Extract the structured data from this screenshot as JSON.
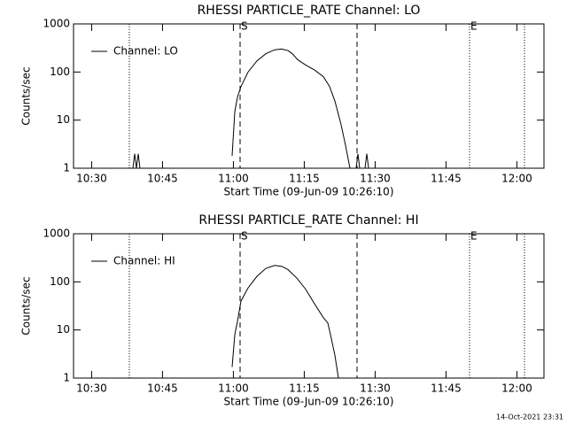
{
  "chart_data": [
    {
      "type": "line",
      "title": "RHESSI PARTICLE_RATE Channel: LO",
      "x_label": "Start Time (09-Jun-09 10:26:10)",
      "y_label": "Counts/sec",
      "xlim": [
        626.17,
        725.73
      ],
      "ylim": [
        1,
        1000
      ],
      "log_y": true,
      "xticks": [
        {
          "value": 630,
          "label": "10:30"
        },
        {
          "value": 645,
          "label": "10:45"
        },
        {
          "value": 660,
          "label": "11:00"
        },
        {
          "value": 675,
          "label": "11:15"
        },
        {
          "value": 690,
          "label": "11:30"
        },
        {
          "value": 705,
          "label": "11:45"
        },
        {
          "value": 720,
          "label": "12:00"
        }
      ],
      "yticks": [
        1,
        10,
        100,
        1000
      ],
      "markers": [
        {
          "x": 637.98,
          "style": "dotted"
        },
        {
          "x": 661.42,
          "style": "dashed",
          "label": "S"
        },
        {
          "x": 686.17,
          "style": "dashed"
        },
        {
          "x": 709.98,
          "style": "dotted",
          "label": "E"
        },
        {
          "x": 721.61,
          "style": "dotted"
        }
      ],
      "legend": "top-left",
      "series": [
        {
          "name": "Channel: LO",
          "color": "#000000",
          "x": [
            638.73,
            639.11,
            639.48,
            639.86,
            640.23,
            650.0,
            659.73,
            660.3,
            660.86,
            661.61,
            663.11,
            664.98,
            666.86,
            668.73,
            670.23,
            671.55,
            672.48,
            673.61,
            675.3,
            677.17,
            679.05,
            680.36,
            681.48,
            682.8,
            683.73,
            684.67,
            685.5,
            685.98,
            686.36,
            686.73,
            687.3,
            687.86,
            688.23,
            688.61
          ],
          "values": [
            1,
            2,
            1,
            2,
            1,
            null,
            1.8,
            15,
            30,
            50,
            100,
            170,
            240,
            290,
            300,
            280,
            240,
            180,
            140,
            110,
            80,
            50,
            25,
            8,
            3,
            1,
            null,
            1,
            2,
            1,
            null,
            1,
            2,
            1
          ]
        }
      ]
    },
    {
      "type": "line",
      "title": "RHESSI PARTICLE_RATE Channel: HI",
      "x_label": "Start Time (09-Jun-09 10:26:10)",
      "y_label": "Counts/sec",
      "xlim": [
        626.17,
        725.73
      ],
      "ylim": [
        1,
        1000
      ],
      "log_y": true,
      "xticks": [
        {
          "value": 630,
          "label": "10:30"
        },
        {
          "value": 645,
          "label": "10:45"
        },
        {
          "value": 660,
          "label": "11:00"
        },
        {
          "value": 675,
          "label": "11:15"
        },
        {
          "value": 690,
          "label": "11:30"
        },
        {
          "value": 705,
          "label": "11:45"
        },
        {
          "value": 720,
          "label": "12:00"
        }
      ],
      "yticks": [
        1,
        10,
        100,
        1000
      ],
      "markers": [
        {
          "x": 637.98,
          "style": "dotted"
        },
        {
          "x": 661.42,
          "style": "dashed",
          "label": "S"
        },
        {
          "x": 686.17,
          "style": "dashed"
        },
        {
          "x": 709.98,
          "style": "dotted",
          "label": "E"
        },
        {
          "x": 721.61,
          "style": "dotted"
        }
      ],
      "legend": "top-left",
      "series": [
        {
          "name": "Channel: HI",
          "color": "#000000",
          "x": [
            659.73,
            660.3,
            660.86,
            661.61,
            663.11,
            664.98,
            666.86,
            668.73,
            670.23,
            671.55,
            673.42,
            675.3,
            677.17,
            679.05,
            679.98,
            680.55,
            681.48,
            682.23
          ],
          "values": [
            1.7,
            8,
            15,
            40,
            75,
            130,
            190,
            220,
            210,
            180,
            120,
            70,
            35,
            18,
            14,
            8,
            3,
            1
          ]
        }
      ]
    }
  ],
  "timestamp": "14-Oct-2021 23:31"
}
